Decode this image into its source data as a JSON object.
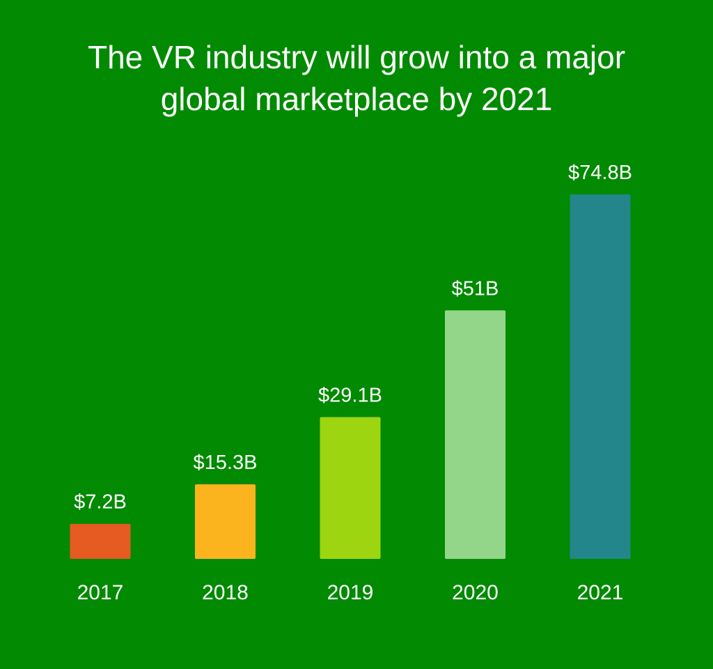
{
  "title_lines": [
    "The VR industry will grow into a major",
    "global marketplace by 2021"
  ],
  "chart_data": {
    "type": "bar",
    "title": "The VR industry will grow into a major global marketplace by 2021",
    "xlabel": "",
    "ylabel": "",
    "categories": [
      "2017",
      "2018",
      "2019",
      "2020",
      "2021"
    ],
    "values": [
      7.2,
      15.3,
      29.1,
      51,
      74.8
    ],
    "value_labels": [
      "$7.2B",
      "$15.3B",
      "$29.1B",
      "$51B",
      "$74.8B"
    ],
    "colors": [
      "#e55b22",
      "#fbb41e",
      "#9dd611",
      "#93d68a",
      "#23868b"
    ],
    "ylim": [
      0,
      74.8
    ],
    "grid": false,
    "legend": "none"
  },
  "colors": {
    "background": "#018a02",
    "text": "#ffffff"
  }
}
